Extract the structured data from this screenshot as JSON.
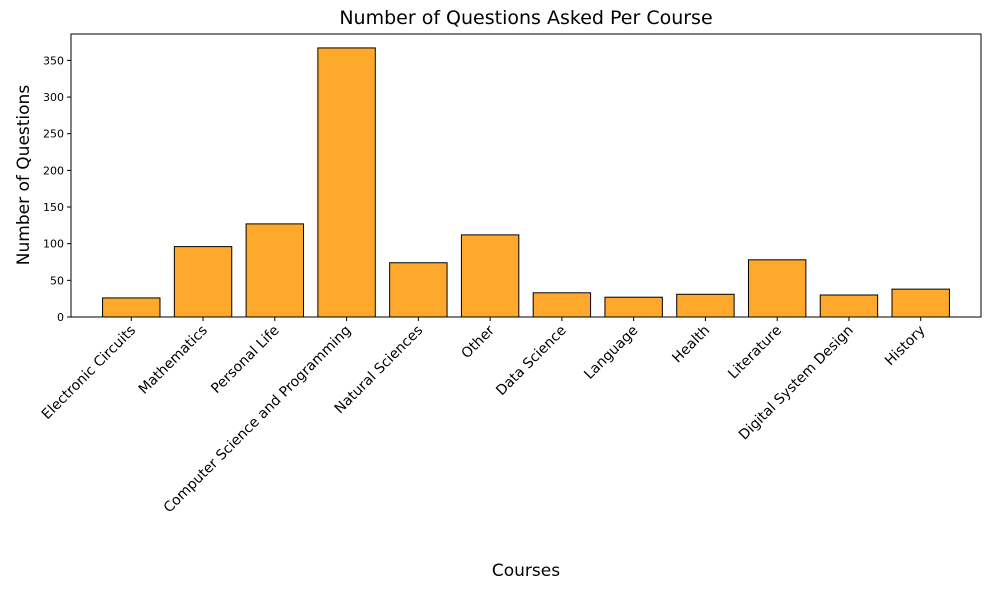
{
  "chart_data": {
    "type": "bar",
    "title": "Number of Questions Asked Per Course",
    "xlabel": "Courses",
    "ylabel": "Number of Questions",
    "categories": [
      "Electronic Circuits",
      "Mathematics",
      "Personal Life",
      "Computer Science and Programming",
      "Natural Sciences",
      "Other",
      "Data Science",
      "Language",
      "Health",
      "Literature",
      "Digital System Design",
      "History"
    ],
    "values": [
      26,
      96,
      127,
      367,
      74,
      112,
      33,
      27,
      31,
      78,
      30,
      38
    ],
    "ylim": [
      0,
      386
    ],
    "yticks": [
      0,
      50,
      100,
      150,
      200,
      250,
      300,
      350
    ],
    "bar_color": "#ffa92c",
    "edge_color": "#000000",
    "grid": false
  }
}
